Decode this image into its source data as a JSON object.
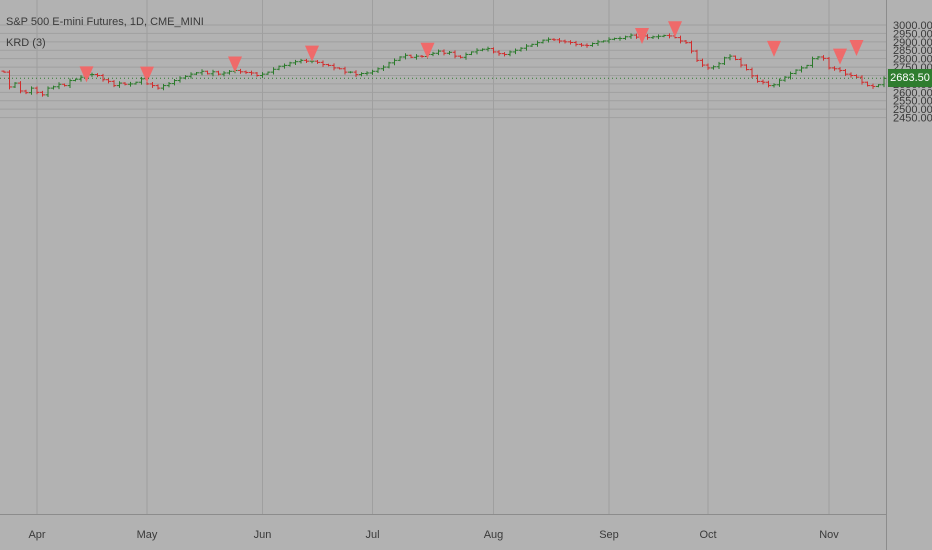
{
  "colors": {
    "background": "#b2b2b2",
    "grid": "#9f9f9f",
    "up_bar": "#2b7a2b",
    "down_bar": "#d02d2d",
    "marker": "#ef6a6a",
    "last_price_bg": "#2f7d2f",
    "axis_text": "#3a3a3a",
    "axis_border": "#8c8c8c"
  },
  "legend": {
    "title": "S&P 500 E-mini Futures, 1D, CME_MINI",
    "indicator": "KRD (3)"
  },
  "last_price": {
    "label": "2683.50",
    "value": 2683.5
  },
  "chart_data": {
    "type": "ohlc",
    "title": "S&P 500 E-mini Futures, 1D, CME_MINI",
    "ylim": [
      2420,
      3020
    ],
    "y_ticks": [
      2450,
      2500,
      2550,
      2600,
      2650,
      2700,
      2750,
      2800,
      2850,
      2900,
      2950,
      3000
    ],
    "y_tick_labels": [
      "2450.00",
      "2500.00",
      "2550.00",
      "2600.00",
      "2650.00",
      "2700.00",
      "2750.00",
      "2800.00",
      "2850.00",
      "2900.00",
      "2950.00",
      "3000.00"
    ],
    "x_ticks": [
      "Apr",
      "May",
      "Jun",
      "Jul",
      "Aug",
      "Sep",
      "Oct",
      "Nov"
    ],
    "x_tick_bar_index": [
      6,
      26,
      47,
      67,
      89,
      110,
      128,
      150
    ],
    "grid": true,
    "price_series": [
      2720,
      2632,
      2655,
      2608,
      2598,
      2625,
      2600,
      2585,
      2625,
      2633,
      2648,
      2640,
      2670,
      2678,
      2690,
      2705,
      2706,
      2700,
      2675,
      2665,
      2640,
      2655,
      2648,
      2650,
      2660,
      2680,
      2650,
      2640,
      2625,
      2640,
      2652,
      2670,
      2685,
      2695,
      2708,
      2716,
      2725,
      2710,
      2722,
      2708,
      2715,
      2725,
      2730,
      2722,
      2718,
      2715,
      2700,
      2708,
      2720,
      2737,
      2755,
      2760,
      2775,
      2782,
      2790,
      2785,
      2785,
      2778,
      2765,
      2760,
      2745,
      2740,
      2720,
      2720,
      2705,
      2712,
      2715,
      2725,
      2740,
      2750,
      2775,
      2790,
      2810,
      2820,
      2808,
      2815,
      2813,
      2825,
      2832,
      2845,
      2832,
      2838,
      2815,
      2808,
      2825,
      2840,
      2850,
      2856,
      2860,
      2840,
      2830,
      2825,
      2840,
      2850,
      2862,
      2875,
      2885,
      2895,
      2910,
      2915,
      2912,
      2905,
      2900,
      2896,
      2885,
      2880,
      2878,
      2890,
      2900,
      2905,
      2915,
      2920,
      2920,
      2930,
      2940,
      2928,
      2935,
      2925,
      2930,
      2933,
      2938,
      2935,
      2925,
      2905,
      2895,
      2845,
      2790,
      2762,
      2745,
      2752,
      2770,
      2805,
      2815,
      2795,
      2762,
      2735,
      2698,
      2665,
      2660,
      2640,
      2645,
      2672,
      2690,
      2712,
      2732,
      2745,
      2760,
      2800,
      2810,
      2802,
      2745,
      2740,
      2730,
      2708,
      2700,
      2690,
      2660,
      2640,
      2635,
      2645,
      2683
    ],
    "marker_bar_index": [
      15,
      26,
      42,
      56,
      77,
      116,
      122,
      140,
      152,
      155
    ],
    "marker_price": [
      2707,
      2705,
      2765,
      2830,
      2847,
      2935,
      2975,
      2858,
      2812,
      2863
    ],
    "markers": "down triangles above swing highs"
  }
}
